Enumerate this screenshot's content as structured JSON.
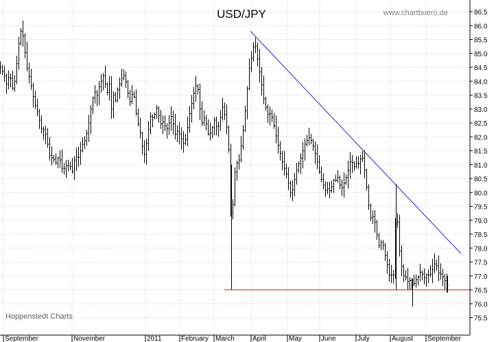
{
  "chart_data": {
    "type": "ohlc",
    "title": "USD/JPY",
    "source": "www.chartbuero.de",
    "credit": "Hoppenstedt Charts",
    "xlabel": "",
    "ylabel": "",
    "ylim": [
      75.0,
      86.6
    ],
    "grid": true,
    "y_ticks": [
      "86.5",
      "86.0",
      "85.5",
      "85.0",
      "84.5",
      "84.0",
      "83.5",
      "83.0",
      "82.5",
      "82.0",
      "81.5",
      "81.0",
      "80.5",
      "80.0",
      "79.5",
      "79.0",
      "78.5",
      "78.0",
      "77.5",
      "77.0",
      "76.5",
      "76.0",
      "75.5"
    ],
    "x_ticks": [
      "September",
      "November",
      "2011",
      "February",
      "March",
      "April",
      "May",
      "June",
      "July",
      "August",
      "September"
    ],
    "resistance_line": {
      "start_value": 85.8,
      "end_value": 77.8
    },
    "support_line": {
      "value": 76.5
    },
    "series_anchors": [
      [
        0,
        84.5
      ],
      [
        6,
        84.2
      ],
      [
        10,
        83.8
      ],
      [
        13,
        84.3
      ],
      [
        17,
        83.9
      ],
      [
        19,
        83.6
      ],
      [
        23,
        84.4
      ],
      [
        26,
        85.1
      ],
      [
        28,
        85.6
      ],
      [
        31,
        85.9
      ],
      [
        34,
        85.5
      ],
      [
        37,
        84.8
      ],
      [
        40,
        84.3
      ],
      [
        43,
        84.1
      ],
      [
        46,
        83.7
      ],
      [
        50,
        83.2
      ],
      [
        53,
        83.0
      ],
      [
        57,
        82.6
      ],
      [
        61,
        82.2
      ],
      [
        64,
        82.3
      ],
      [
        67,
        82.0
      ],
      [
        70,
        81.6
      ],
      [
        73,
        81.2
      ],
      [
        77,
        81.3
      ],
      [
        80,
        81.0
      ],
      [
        83,
        81.2
      ],
      [
        86,
        81.3
      ],
      [
        89,
        80.9
      ],
      [
        92,
        80.8
      ],
      [
        95,
        81.0
      ],
      [
        98,
        80.9
      ],
      [
        101,
        81.1
      ],
      [
        104,
        80.6
      ],
      [
        107,
        81.1
      ],
      [
        110,
        81.3
      ],
      [
        113,
        81.2
      ],
      [
        116,
        81.4
      ],
      [
        119,
        81.7
      ],
      [
        122,
        81.8
      ],
      [
        125,
        82.0
      ],
      [
        129,
        82.5
      ],
      [
        132,
        83.0
      ],
      [
        135,
        83.4
      ],
      [
        138,
        83.6
      ],
      [
        141,
        83.5
      ],
      [
        144,
        83.8
      ],
      [
        147,
        84.0
      ],
      [
        150,
        84.2
      ],
      [
        153,
        83.9
      ],
      [
        156,
        83.6
      ],
      [
        159,
        83.9
      ],
      [
        162,
        83.0
      ],
      [
        165,
        83.5
      ],
      [
        168,
        83.3
      ],
      [
        171,
        83.7
      ],
      [
        174,
        83.9
      ],
      [
        177,
        84.1
      ],
      [
        180,
        84.2
      ],
      [
        184,
        83.9
      ],
      [
        187,
        83.4
      ],
      [
        190,
        83.2
      ],
      [
        193,
        83.7
      ],
      [
        196,
        83.3
      ],
      [
        199,
        82.6
      ],
      [
        202,
        82.4
      ],
      [
        205,
        82.0
      ],
      [
        208,
        81.5
      ],
      [
        211,
        81.3
      ],
      [
        214,
        82.0
      ],
      [
        217,
        82.4
      ],
      [
        220,
        82.9
      ],
      [
        223,
        82.6
      ],
      [
        226,
        82.9
      ],
      [
        229,
        83.1
      ],
      [
        232,
        82.6
      ],
      [
        235,
        82.4
      ],
      [
        238,
        82.6
      ],
      [
        241,
        82.3
      ],
      [
        244,
        82.3
      ],
      [
        247,
        82.6
      ],
      [
        250,
        82.8
      ],
      [
        253,
        82.3
      ],
      [
        256,
        82.0
      ],
      [
        259,
        82.3
      ],
      [
        262,
        82.0
      ],
      [
        265,
        81.9
      ],
      [
        268,
        81.7
      ],
      [
        271,
        82.0
      ],
      [
        274,
        82.5
      ],
      [
        277,
        83.0
      ],
      [
        280,
        83.3
      ],
      [
        283,
        83.7
      ],
      [
        286,
        83.9
      ],
      [
        289,
        83.6
      ],
      [
        292,
        82.7
      ],
      [
        295,
        82.4
      ],
      [
        298,
        82.8
      ],
      [
        301,
        82.3
      ],
      [
        304,
        82.0
      ],
      [
        307,
        82.2
      ],
      [
        310,
        82.4
      ],
      [
        313,
        82.7
      ],
      [
        316,
        82.2
      ],
      [
        319,
        82.5
      ],
      [
        322,
        82.8
      ],
      [
        325,
        83.2
      ],
      [
        328,
        82.6
      ],
      [
        331,
        82.2
      ],
      [
        334,
        81.2
      ],
      [
        337,
        78.3
      ],
      [
        340,
        80.2
      ],
      [
        343,
        81.0
      ],
      [
        346,
        81.1
      ],
      [
        349,
        81.2
      ],
      [
        352,
        81.9
      ],
      [
        355,
        82.4
      ],
      [
        358,
        83.2
      ],
      [
        361,
        84.0
      ],
      [
        364,
        84.7
      ],
      [
        367,
        84.9
      ],
      [
        370,
        85.4
      ],
      [
        373,
        85.2
      ],
      [
        376,
        84.6
      ],
      [
        379,
        84.2
      ],
      [
        382,
        83.7
      ],
      [
        385,
        83.2
      ],
      [
        388,
        83.0
      ],
      [
        391,
        82.7
      ],
      [
        394,
        82.9
      ],
      [
        397,
        82.6
      ],
      [
        400,
        82.3
      ],
      [
        403,
        81.9
      ],
      [
        406,
        81.6
      ],
      [
        409,
        81.3
      ],
      [
        412,
        81.0
      ],
      [
        415,
        80.8
      ],
      [
        418,
        80.6
      ],
      [
        421,
        80.2
      ],
      [
        424,
        79.9
      ],
      [
        427,
        80.2
      ],
      [
        430,
        80.6
      ],
      [
        433,
        80.9
      ],
      [
        436,
        81.1
      ],
      [
        439,
        81.3
      ],
      [
        442,
        81.6
      ],
      [
        445,
        81.8
      ],
      [
        448,
        81.9
      ],
      [
        451,
        82.0
      ],
      [
        454,
        81.8
      ],
      [
        457,
        81.6
      ],
      [
        460,
        81.3
      ],
      [
        463,
        81.0
      ],
      [
        466,
        80.6
      ],
      [
        469,
        80.4
      ],
      [
        472,
        80.2
      ],
      [
        475,
        80.0
      ],
      [
        478,
        80.2
      ],
      [
        481,
        80.0
      ],
      [
        484,
        80.3
      ],
      [
        487,
        80.5
      ],
      [
        490,
        80.4
      ],
      [
        493,
        80.6
      ],
      [
        496,
        80.1
      ],
      [
        499,
        80.2
      ],
      [
        502,
        80.4
      ],
      [
        505,
        80.6
      ],
      [
        508,
        80.9
      ],
      [
        511,
        81.2
      ],
      [
        514,
        81.0
      ],
      [
        517,
        80.9
      ],
      [
        520,
        81.1
      ],
      [
        523,
        81.0
      ],
      [
        526,
        81.3
      ],
      [
        529,
        81.2
      ],
      [
        532,
        80.6
      ],
      [
        535,
        80.0
      ],
      [
        538,
        79.3
      ],
      [
        541,
        79.0
      ],
      [
        544,
        79.2
      ],
      [
        547,
        78.8
      ],
      [
        550,
        78.3
      ],
      [
        553,
        78.0
      ],
      [
        556,
        78.3
      ],
      [
        559,
        78.0
      ],
      [
        562,
        77.6
      ],
      [
        565,
        77.3
      ],
      [
        568,
        76.9
      ],
      [
        571,
        77.1
      ],
      [
        574,
        77.0
      ],
      [
        577,
        79.8
      ],
      [
        580,
        78.5
      ],
      [
        583,
        77.6
      ],
      [
        586,
        77.2
      ],
      [
        589,
        76.9
      ],
      [
        592,
        77.0
      ],
      [
        595,
        76.7
      ],
      [
        598,
        76.9
      ],
      [
        601,
        76.6
      ],
      [
        604,
        76.8
      ],
      [
        607,
        76.9
      ],
      [
        610,
        77.0
      ],
      [
        613,
        77.2
      ],
      [
        616,
        77.0
      ],
      [
        619,
        76.9
      ],
      [
        622,
        77.1
      ],
      [
        625,
        77.0
      ],
      [
        628,
        77.1
      ],
      [
        631,
        77.3
      ],
      [
        634,
        77.5
      ],
      [
        637,
        77.3
      ],
      [
        640,
        77.0
      ],
      [
        643,
        77.1
      ],
      [
        646,
        76.9
      ],
      [
        649,
        76.8
      ],
      [
        652,
        76.6
      ]
    ]
  }
}
